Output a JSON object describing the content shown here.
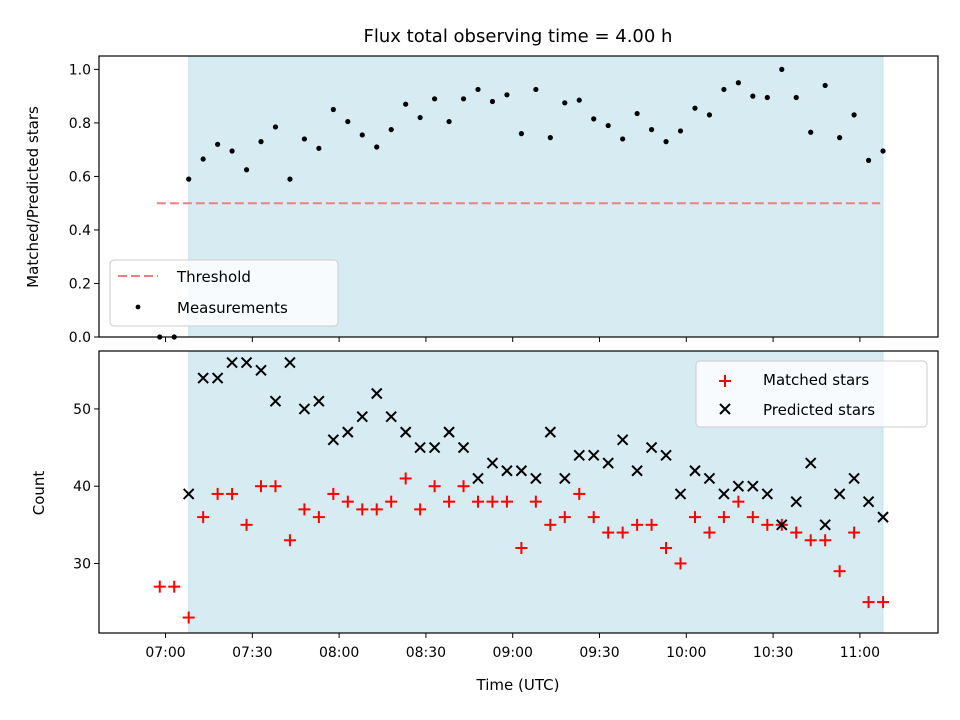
{
  "chart_data": [
    {
      "type": "scatter",
      "title": "Flux total observing time = 4.00 h",
      "xlabel": "",
      "ylabel": "Matched/Predicted stars",
      "ylim": [
        0,
        1.05
      ],
      "yticks": [
        "0.0",
        "0.2",
        "0.4",
        "0.6",
        "0.8",
        "1.0"
      ],
      "legend_placement": "lower-left",
      "shaded_span": {
        "start": "07:08",
        "end": "11:08",
        "color": "#add8e6"
      },
      "threshold": {
        "name": "Threshold",
        "value": 0.5,
        "x_start": "06:57",
        "x_end": "11:07",
        "color": "#f08080",
        "style": "dashed"
      },
      "series": [
        {
          "name": "Measurements",
          "marker": "dot",
          "color": "#000000",
          "points": [
            [
              "06:58",
              0.0
            ],
            [
              "07:03",
              0.0
            ],
            [
              "07:08",
              0.59
            ],
            [
              "07:13",
              0.665
            ],
            [
              "07:18",
              0.72
            ],
            [
              "07:23",
              0.695
            ],
            [
              "07:28",
              0.625
            ],
            [
              "07:33",
              0.73
            ],
            [
              "07:38",
              0.785
            ],
            [
              "07:43",
              0.59
            ],
            [
              "07:48",
              0.74
            ],
            [
              "07:53",
              0.705
            ],
            [
              "07:58",
              0.85
            ],
            [
              "08:03",
              0.805
            ],
            [
              "08:08",
              0.755
            ],
            [
              "08:13",
              0.71
            ],
            [
              "08:18",
              0.775
            ],
            [
              "08:23",
              0.87
            ],
            [
              "08:28",
              0.82
            ],
            [
              "08:33",
              0.89
            ],
            [
              "08:38",
              0.805
            ],
            [
              "08:43",
              0.89
            ],
            [
              "08:48",
              0.925
            ],
            [
              "08:53",
              0.88
            ],
            [
              "08:58",
              0.905
            ],
            [
              "09:03",
              0.76
            ],
            [
              "09:08",
              0.925
            ],
            [
              "09:13",
              0.745
            ],
            [
              "09:18",
              0.875
            ],
            [
              "09:23",
              0.885
            ],
            [
              "09:28",
              0.815
            ],
            [
              "09:33",
              0.79
            ],
            [
              "09:38",
              0.74
            ],
            [
              "09:43",
              0.835
            ],
            [
              "09:48",
              0.775
            ],
            [
              "09:53",
              0.73
            ],
            [
              "09:58",
              0.77
            ],
            [
              "10:03",
              0.855
            ],
            [
              "10:08",
              0.83
            ],
            [
              "10:13",
              0.925
            ],
            [
              "10:18",
              0.95
            ],
            [
              "10:23",
              0.9
            ],
            [
              "10:28",
              0.895
            ],
            [
              "10:33",
              1.0
            ],
            [
              "10:38",
              0.895
            ],
            [
              "10:43",
              0.765
            ],
            [
              "10:48",
              0.94
            ],
            [
              "10:53",
              0.745
            ],
            [
              "10:58",
              0.83
            ],
            [
              "11:03",
              0.66
            ],
            [
              "11:08",
              0.695
            ]
          ]
        }
      ]
    },
    {
      "type": "scatter",
      "title": "",
      "xlabel": "Time (UTC)",
      "ylabel": "Count",
      "ylim": [
        21,
        57.5
      ],
      "yticks": [
        "30",
        "40",
        "50"
      ],
      "xlim": [
        "06:37",
        "11:27"
      ],
      "xticks": [
        "07:00",
        "07:30",
        "08:00",
        "08:30",
        "09:00",
        "09:30",
        "10:00",
        "10:30",
        "11:00"
      ],
      "legend_placement": "top-right",
      "shaded_span": {
        "start": "07:08",
        "end": "11:08",
        "color": "#add8e6"
      },
      "series": [
        {
          "name": "Matched stars",
          "marker": "plus",
          "color": "#ff0000",
          "points": [
            [
              "06:58",
              27
            ],
            [
              "07:03",
              27
            ],
            [
              "07:08",
              23
            ],
            [
              "07:13",
              36
            ],
            [
              "07:18",
              39
            ],
            [
              "07:23",
              39
            ],
            [
              "07:28",
              35
            ],
            [
              "07:33",
              40
            ],
            [
              "07:38",
              40
            ],
            [
              "07:43",
              33
            ],
            [
              "07:48",
              37
            ],
            [
              "07:53",
              36
            ],
            [
              "07:58",
              39
            ],
            [
              "08:03",
              38
            ],
            [
              "08:08",
              37
            ],
            [
              "08:13",
              37
            ],
            [
              "08:18",
              38
            ],
            [
              "08:23",
              41
            ],
            [
              "08:28",
              37
            ],
            [
              "08:33",
              40
            ],
            [
              "08:38",
              38
            ],
            [
              "08:43",
              40
            ],
            [
              "08:48",
              38
            ],
            [
              "08:53",
              38
            ],
            [
              "08:58",
              38
            ],
            [
              "09:03",
              32
            ],
            [
              "09:08",
              38
            ],
            [
              "09:13",
              35
            ],
            [
              "09:18",
              36
            ],
            [
              "09:23",
              39
            ],
            [
              "09:28",
              36
            ],
            [
              "09:33",
              34
            ],
            [
              "09:38",
              34
            ],
            [
              "09:43",
              35
            ],
            [
              "09:48",
              35
            ],
            [
              "09:53",
              32
            ],
            [
              "09:58",
              30
            ],
            [
              "10:03",
              36
            ],
            [
              "10:08",
              34
            ],
            [
              "10:13",
              36
            ],
            [
              "10:18",
              38
            ],
            [
              "10:23",
              36
            ],
            [
              "10:28",
              35
            ],
            [
              "10:33",
              35
            ],
            [
              "10:38",
              34
            ],
            [
              "10:43",
              33
            ],
            [
              "10:48",
              33
            ],
            [
              "10:53",
              29
            ],
            [
              "10:58",
              34
            ],
            [
              "11:03",
              25
            ],
            [
              "11:08",
              25
            ]
          ]
        },
        {
          "name": "Predicted stars",
          "marker": "x",
          "color": "#000000",
          "points": [
            [
              "07:08",
              39
            ],
            [
              "07:13",
              54
            ],
            [
              "07:18",
              54
            ],
            [
              "07:23",
              56
            ],
            [
              "07:28",
              56
            ],
            [
              "07:33",
              55
            ],
            [
              "07:38",
              51
            ],
            [
              "07:43",
              56
            ],
            [
              "07:48",
              50
            ],
            [
              "07:53",
              51
            ],
            [
              "07:58",
              46
            ],
            [
              "08:03",
              47
            ],
            [
              "08:08",
              49
            ],
            [
              "08:13",
              52
            ],
            [
              "08:18",
              49
            ],
            [
              "08:23",
              47
            ],
            [
              "08:28",
              45
            ],
            [
              "08:33",
              45
            ],
            [
              "08:38",
              47
            ],
            [
              "08:43",
              45
            ],
            [
              "08:48",
              41
            ],
            [
              "08:53",
              43
            ],
            [
              "08:58",
              42
            ],
            [
              "09:03",
              42
            ],
            [
              "09:08",
              41
            ],
            [
              "09:13",
              47
            ],
            [
              "09:18",
              41
            ],
            [
              "09:23",
              44
            ],
            [
              "09:28",
              44
            ],
            [
              "09:33",
              43
            ],
            [
              "09:38",
              46
            ],
            [
              "09:43",
              42
            ],
            [
              "09:48",
              45
            ],
            [
              "09:53",
              44
            ],
            [
              "09:58",
              39
            ],
            [
              "10:03",
              42
            ],
            [
              "10:08",
              41
            ],
            [
              "10:13",
              39
            ],
            [
              "10:18",
              40
            ],
            [
              "10:23",
              40
            ],
            [
              "10:28",
              39
            ],
            [
              "10:33",
              35
            ],
            [
              "10:38",
              38
            ],
            [
              "10:43",
              43
            ],
            [
              "10:48",
              35
            ],
            [
              "10:53",
              39
            ],
            [
              "10:58",
              41
            ],
            [
              "11:03",
              38
            ],
            [
              "11:08",
              36
            ]
          ]
        }
      ]
    }
  ]
}
